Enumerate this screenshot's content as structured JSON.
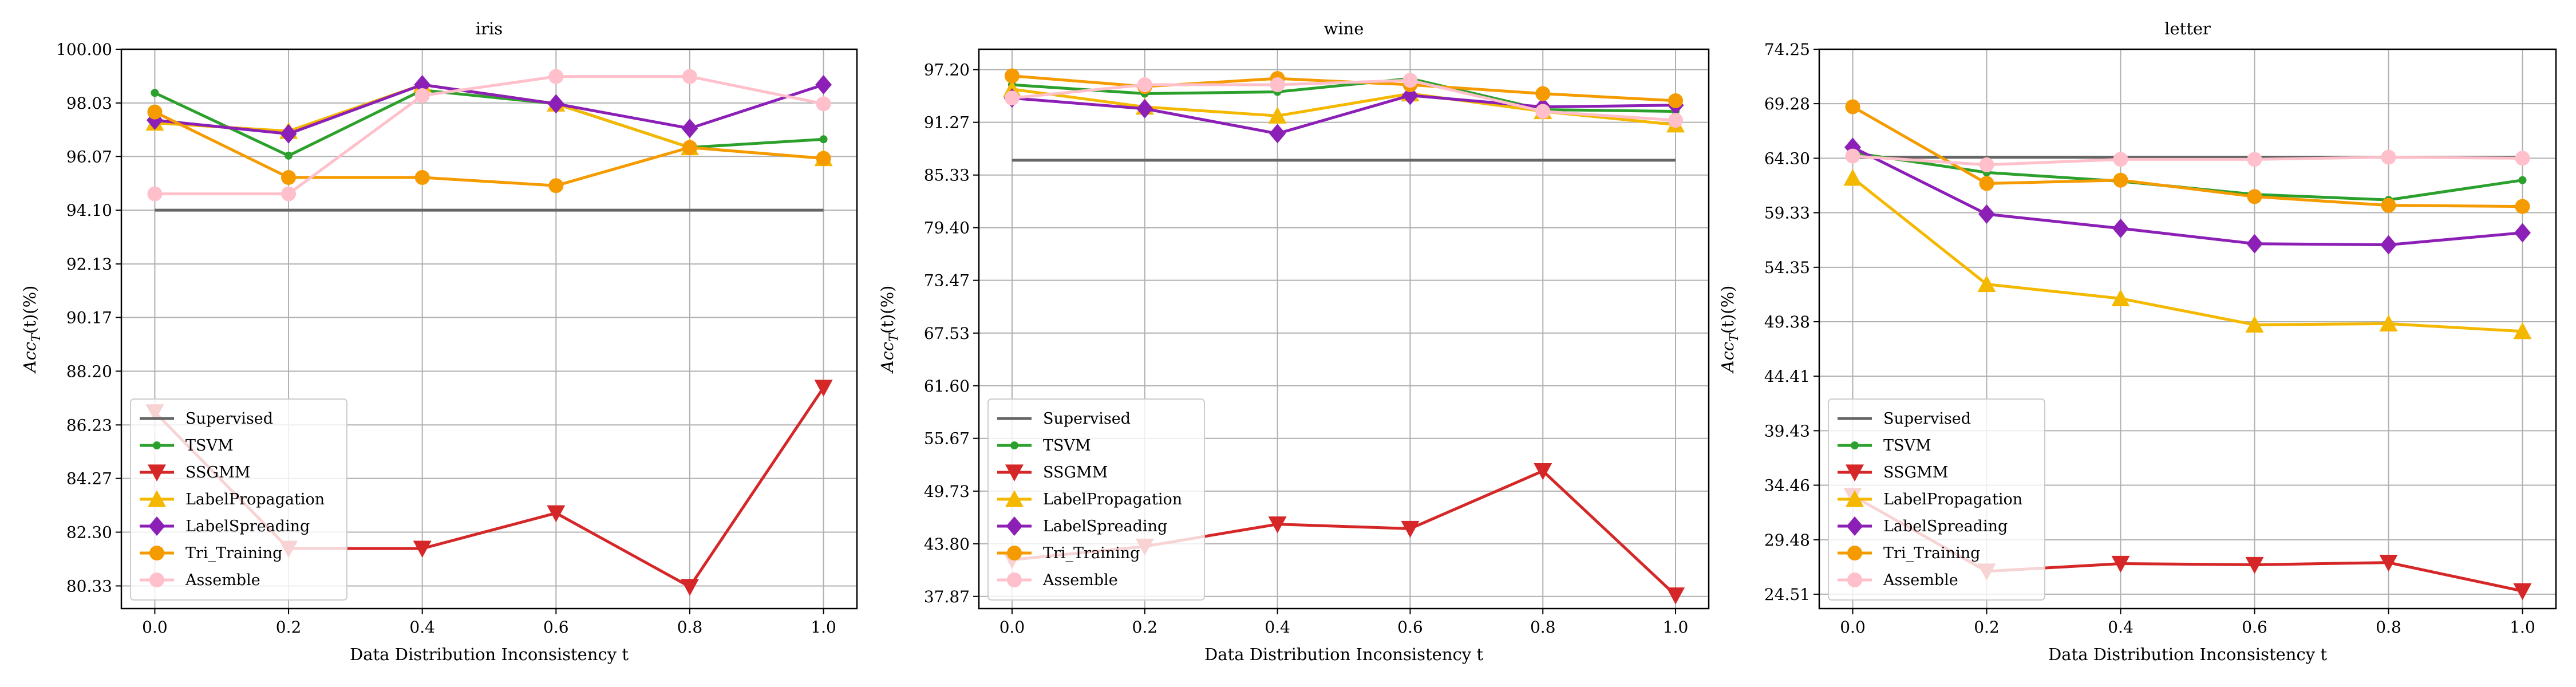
{
  "figure": {
    "background": "#ffffff"
  },
  "chart_data": [
    {
      "type": "line",
      "title": "iris",
      "xlabel": "Data Distribution Inconsistency t",
      "ylabel": "Acc_T(t)(%)",
      "x": [
        0.0,
        0.2,
        0.4,
        0.6,
        0.8,
        1.0
      ],
      "xticks": [
        "0.0",
        "0.2",
        "0.4",
        "0.6",
        "0.8",
        "1.0"
      ],
      "xlim": [
        -0.05,
        1.05
      ],
      "ylim": [
        79.5,
        100.0
      ],
      "yticks": [
        "80.33",
        "82.30",
        "84.27",
        "86.23",
        "88.20",
        "90.17",
        "92.13",
        "94.10",
        "96.07",
        "98.03",
        "100.00"
      ],
      "grid": true,
      "legend_position": "lower-left",
      "series": [
        {
          "name": "Supervised",
          "color": "#666666",
          "marker": "none",
          "values": [
            94.1,
            94.1,
            94.1,
            94.1,
            94.1,
            94.1
          ]
        },
        {
          "name": "TSVM",
          "color": "#2ca02c",
          "marker": "dot",
          "values": [
            98.4,
            96.1,
            98.5,
            98.0,
            96.4,
            96.7
          ]
        },
        {
          "name": "SSGMM",
          "color": "#d62728",
          "marker": "triangle-down",
          "values": [
            86.7,
            81.7,
            81.7,
            83.0,
            80.3,
            87.6
          ]
        },
        {
          "name": "LabelPropagation",
          "color": "#f5b800",
          "marker": "triangle-up",
          "values": [
            97.3,
            97.0,
            98.7,
            98.0,
            96.4,
            96.0
          ]
        },
        {
          "name": "LabelSpreading",
          "color": "#8c1fb5",
          "marker": "diamond",
          "values": [
            97.4,
            96.9,
            98.7,
            98.0,
            97.1,
            98.7
          ]
        },
        {
          "name": "Tri_Training",
          "color": "#f59b00",
          "marker": "circle",
          "values": [
            97.7,
            95.3,
            95.3,
            95.0,
            96.4,
            96.0
          ]
        },
        {
          "name": "Assemble",
          "color": "#ffc0cb",
          "marker": "circle",
          "values": [
            94.7,
            94.7,
            98.3,
            99.0,
            99.0,
            98.0
          ]
        }
      ]
    },
    {
      "type": "line",
      "title": "wine",
      "xlabel": "Data Distribution Inconsistency t",
      "ylabel": "Acc_T(t)(%)",
      "x": [
        0.0,
        0.2,
        0.4,
        0.6,
        0.8,
        1.0
      ],
      "xticks": [
        "0.0",
        "0.2",
        "0.4",
        "0.6",
        "0.8",
        "1.0"
      ],
      "xlim": [
        -0.05,
        1.05
      ],
      "ylim": [
        36.5,
        99.5
      ],
      "yticks": [
        "37.87",
        "43.80",
        "49.73",
        "55.67",
        "61.60",
        "67.53",
        "73.47",
        "79.40",
        "85.33",
        "91.27",
        "97.20"
      ],
      "grid": true,
      "legend_position": "lower-left",
      "series": [
        {
          "name": "Supervised",
          "color": "#666666",
          "marker": "none",
          "values": [
            87.0,
            87.0,
            87.0,
            87.0,
            87.0,
            87.0
          ]
        },
        {
          "name": "TSVM",
          "color": "#2ca02c",
          "marker": "dot",
          "values": [
            95.5,
            94.5,
            94.7,
            96.2,
            92.7,
            92.5
          ]
        },
        {
          "name": "SSGMM",
          "color": "#d62728",
          "marker": "triangle-down",
          "values": [
            42.0,
            43.5,
            46.0,
            45.5,
            52.0,
            38.0
          ]
        },
        {
          "name": "LabelPropagation",
          "color": "#f5b800",
          "marker": "triangle-up",
          "values": [
            95.0,
            93.0,
            92.0,
            94.5,
            92.5,
            91.0
          ]
        },
        {
          "name": "LabelSpreading",
          "color": "#8c1fb5",
          "marker": "diamond",
          "values": [
            94.0,
            92.8,
            90.0,
            94.3,
            93.0,
            93.2
          ]
        },
        {
          "name": "Tri_Training",
          "color": "#f59b00",
          "marker": "circle",
          "values": [
            96.5,
            95.3,
            96.2,
            95.5,
            94.5,
            93.7
          ]
        },
        {
          "name": "Assemble",
          "color": "#ffc0cb",
          "marker": "circle",
          "values": [
            94.0,
            95.5,
            95.5,
            96.0,
            92.5,
            91.5
          ]
        }
      ]
    },
    {
      "type": "line",
      "title": "letter",
      "xlabel": "Data Distribution Inconsistency t",
      "ylabel": "Acc_T(t)(%)",
      "x": [
        0.0,
        0.2,
        0.4,
        0.6,
        0.8,
        1.0
      ],
      "xticks": [
        "0.0",
        "0.2",
        "0.4",
        "0.6",
        "0.8",
        "1.0"
      ],
      "xlim": [
        -0.05,
        1.05
      ],
      "ylim": [
        23.2,
        74.25
      ],
      "yticks": [
        "24.51",
        "29.48",
        "34.46",
        "39.43",
        "44.41",
        "49.38",
        "54.35",
        "59.33",
        "64.30",
        "69.28",
        "74.25"
      ],
      "grid": true,
      "legend_position": "lower-left",
      "series": [
        {
          "name": "Supervised",
          "color": "#666666",
          "marker": "none",
          "values": [
            64.4,
            64.4,
            64.4,
            64.4,
            64.4,
            64.4
          ]
        },
        {
          "name": "TSVM",
          "color": "#2ca02c",
          "marker": "dot",
          "values": [
            64.8,
            63.0,
            62.2,
            61.0,
            60.5,
            62.3
          ]
        },
        {
          "name": "SSGMM",
          "color": "#d62728",
          "marker": "triangle-down",
          "values": [
            33.5,
            26.6,
            27.3,
            27.2,
            27.4,
            24.8
          ]
        },
        {
          "name": "LabelPropagation",
          "color": "#f5b800",
          "marker": "triangle-up",
          "values": [
            62.5,
            52.8,
            51.5,
            49.1,
            49.2,
            48.5
          ]
        },
        {
          "name": "LabelSpreading",
          "color": "#8c1fb5",
          "marker": "diamond",
          "values": [
            65.3,
            59.2,
            57.9,
            56.5,
            56.4,
            57.5
          ]
        },
        {
          "name": "Tri_Training",
          "color": "#f59b00",
          "marker": "circle",
          "values": [
            69.0,
            62.0,
            62.3,
            60.8,
            60.0,
            59.9
          ]
        },
        {
          "name": "Assemble",
          "color": "#ffc0cb",
          "marker": "circle",
          "values": [
            64.5,
            63.7,
            64.2,
            64.2,
            64.4,
            64.3
          ]
        }
      ]
    }
  ]
}
